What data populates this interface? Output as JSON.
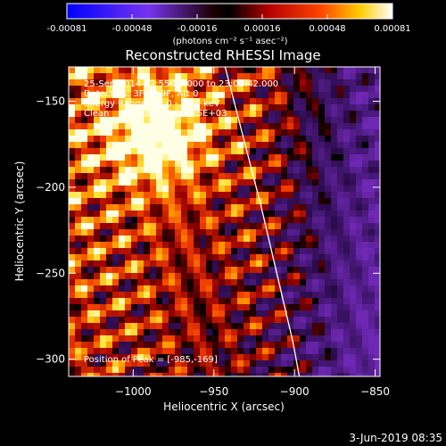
{
  "colorbar": {
    "tick_labels": [
      "-0.00081",
      "-0.00048",
      "-0.00016",
      "0.00016",
      "0.00048",
      "0.00081"
    ],
    "range": [
      -0.00081,
      0.00081
    ],
    "unit_label": "(photons cm⁻² s⁻¹ asec⁻²)"
  },
  "chart_data": {
    "type": "heatmap",
    "title": "Reconstructed RHESSI Image",
    "xlabel": "Heliocentric X (arcsec)",
    "ylabel": "Heliocentric Y (arcsec)",
    "xlim": [
      -1040,
      -847
    ],
    "ylim": [
      -310,
      -130
    ],
    "x_ticks": [
      -1000,
      -950,
      -900,
      -850
    ],
    "x_tick_labels": [
      "−1000",
      "−950",
      "−900",
      "−850"
    ],
    "y_ticks": [
      -150,
      -200,
      -250,
      -300
    ],
    "y_tick_labels": [
      "−150",
      "−200",
      "−250",
      "−300"
    ],
    "annotations": [
      "25-Sep-2014 22:55:24.000 to 23:03:42.000",
      "Detectors: 3F 6F 9F, Att 0",
      "Energy Range: 12.0 - 25.0 keV",
      "Clean     Total counts: 5.25E+03"
    ],
    "peak_label": "Position of Peak = [-985,-169]",
    "peak": [
      -985,
      -169
    ],
    "limb_curve": [
      [
        -943,
        -130
      ],
      [
        -932,
        -170
      ],
      [
        -921,
        -210
      ],
      [
        -911,
        -250
      ],
      [
        -901,
        -290
      ],
      [
        -897,
        -310
      ]
    ]
  },
  "footer": {
    "date": "3-Jun-2019 08:35"
  }
}
